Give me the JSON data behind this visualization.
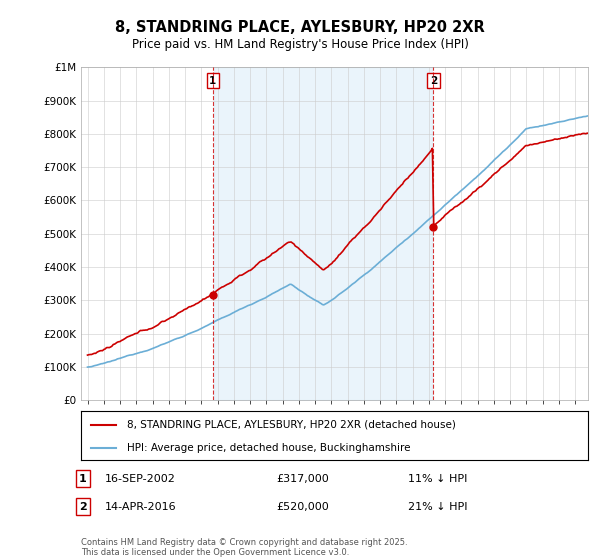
{
  "title": "8, STANDRING PLACE, AYLESBURY, HP20 2XR",
  "subtitle": "Price paid vs. HM Land Registry's House Price Index (HPI)",
  "legend_line1": "8, STANDRING PLACE, AYLESBURY, HP20 2XR (detached house)",
  "legend_line2": "HPI: Average price, detached house, Buckinghamshire",
  "footnote": "Contains HM Land Registry data © Crown copyright and database right 2025.\nThis data is licensed under the Open Government Licence v3.0.",
  "annotation1_date": "16-SEP-2002",
  "annotation1_price": "£317,000",
  "annotation1_hpi": "11% ↓ HPI",
  "annotation2_date": "14-APR-2016",
  "annotation2_price": "£520,000",
  "annotation2_hpi": "21% ↓ HPI",
  "purchase1_year": 2002.71,
  "purchase1_price": 317000,
  "purchase2_year": 2016.28,
  "purchase2_price": 520000,
  "hpi_color": "#6baed6",
  "hpi_fill_color": "#d6eaf8",
  "price_color": "#cc0000",
  "annotation_color": "#cc0000",
  "background_color": "#ffffff",
  "ylim": [
    0,
    1000000
  ],
  "xlim_start": 1994.6,
  "xlim_end": 2025.8,
  "yticks": [
    0,
    100000,
    200000,
    300000,
    400000,
    500000,
    600000,
    700000,
    800000,
    900000,
    1000000
  ],
  "xticks": [
    1995,
    1996,
    1997,
    1998,
    1999,
    2000,
    2001,
    2002,
    2003,
    2004,
    2005,
    2006,
    2007,
    2008,
    2009,
    2010,
    2011,
    2012,
    2013,
    2014,
    2015,
    2016,
    2017,
    2018,
    2019,
    2020,
    2021,
    2022,
    2023,
    2024,
    2025
  ]
}
